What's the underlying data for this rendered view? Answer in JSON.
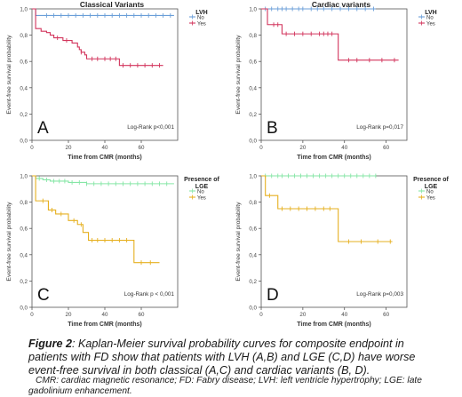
{
  "figure_caption": {
    "label": "Figure 2",
    "text": ": Kaplan-Meier survival probability curves for composite endpoint in patients with FD show that patients with LVH (A,B) and LGE (C,D) have worse event-free survival in both classical (A,C) and cardiac variants (B, D).",
    "abbreviations": "CMR: cardiac magnetic resonance; FD: Fabry disease; LVH: left ventricle hypertrophy; LGE: late gadolinium enhancement."
  },
  "colors": {
    "no": "#6b9fd8",
    "yes": "#d2345c",
    "no_lge": "#86e6a6",
    "yes_lge": "#e6b020",
    "axis": "#555555"
  },
  "chart_data": [
    {
      "panel_letter": "A",
      "type": "line",
      "title": "Classical Variants",
      "xlabel": "Time from CMR (months)",
      "ylabel": "Event-free survival probability",
      "xlim": [
        0,
        80
      ],
      "ylim": [
        0,
        1
      ],
      "xticks": [
        0,
        20,
        40,
        60
      ],
      "xtick_labels": [
        "0",
        "20",
        "40",
        "60"
      ],
      "yticks": [
        0,
        0.2,
        0.4,
        0.6,
        0.8,
        1.0
      ],
      "ytick_labels": [
        "0,0",
        "0,2",
        "0,4",
        "0,6",
        "0,8",
        "1,0"
      ],
      "legend_title": "LVH",
      "legend_position": "top-right",
      "stat_text": "Log-Rank p<0,001",
      "series": [
        {
          "name": "No",
          "color": "#6b9fd8",
          "steps": [
            [
              0,
              1.0
            ],
            [
              2,
              0.95
            ],
            [
              78,
              0.95
            ]
          ],
          "censored": [
            8,
            12,
            16,
            20,
            24,
            28,
            32,
            36,
            40,
            44,
            48,
            52,
            56,
            60,
            64,
            68,
            72,
            76
          ]
        },
        {
          "name": "Yes",
          "color": "#d2345c",
          "steps": [
            [
              0,
              1.0
            ],
            [
              2,
              0.85
            ],
            [
              5,
              0.83
            ],
            [
              8,
              0.82
            ],
            [
              10,
              0.8
            ],
            [
              12,
              0.78
            ],
            [
              17,
              0.76
            ],
            [
              22,
              0.74
            ],
            [
              25,
              0.71
            ],
            [
              26,
              0.69
            ],
            [
              27,
              0.67
            ],
            [
              29,
              0.65
            ],
            [
              30,
              0.62
            ],
            [
              48,
              0.57
            ],
            [
              72,
              0.57
            ]
          ],
          "censored": [
            14,
            19,
            27,
            33,
            36,
            40,
            43,
            46,
            50,
            54,
            58,
            62,
            66,
            70
          ]
        }
      ]
    },
    {
      "panel_letter": "B",
      "type": "line",
      "title": "Cardiac variants",
      "xlabel": "Time from CMR (months)",
      "ylabel": "Event-free survival probability",
      "xlim": [
        0,
        70
      ],
      "ylim": [
        0,
        1
      ],
      "xticks": [
        0,
        20,
        40,
        60
      ],
      "xtick_labels": [
        "0",
        "20",
        "40",
        "60"
      ],
      "yticks": [
        0,
        0.2,
        0.4,
        0.6,
        0.8,
        1.0
      ],
      "ytick_labels": [
        "0,0",
        "0,2",
        "0,4",
        "0,6",
        "0,8",
        "1,0"
      ],
      "legend_title": "LVH",
      "legend_position": "top-right",
      "stat_text": "Log-Rank p=0,017",
      "series": [
        {
          "name": "No",
          "color": "#6b9fd8",
          "steps": [
            [
              0,
              1.0
            ],
            [
              55,
              1.0
            ]
          ],
          "censored": [
            2,
            5,
            8,
            10,
            12,
            15,
            18,
            20,
            24,
            27,
            30,
            34,
            38,
            42,
            46,
            50,
            54
          ]
        },
        {
          "name": "Yes",
          "color": "#d2345c",
          "steps": [
            [
              0,
              1.0
            ],
            [
              3,
              0.88
            ],
            [
              10,
              0.81
            ],
            [
              37,
              0.61
            ],
            [
              66,
              0.61
            ]
          ],
          "censored": [
            6,
            8,
            12,
            16,
            20,
            24,
            28,
            30,
            32,
            34,
            42,
            46,
            52,
            58,
            64
          ]
        }
      ]
    },
    {
      "panel_letter": "C",
      "type": "line",
      "title": "",
      "xlabel": "Time from CMR (months)",
      "ylabel": "Event-free survival probability",
      "xlim": [
        0,
        80
      ],
      "ylim": [
        0,
        1
      ],
      "xticks": [
        0,
        20,
        40,
        60
      ],
      "xtick_labels": [
        "0",
        "20",
        "40",
        "60"
      ],
      "yticks": [
        0,
        0.2,
        0.4,
        0.6,
        0.8,
        1.0
      ],
      "ytick_labels": [
        "0,0",
        "0,2",
        "0,4",
        "0,6",
        "0,8",
        "1,0"
      ],
      "legend_title": "Presence of LGE",
      "legend_position": "top-right",
      "stat_text": "Log-Rank p < 0,001",
      "series": [
        {
          "name": "No",
          "color": "#86e6a6",
          "steps": [
            [
              0,
              1.0
            ],
            [
              2,
              0.98
            ],
            [
              6,
              0.97
            ],
            [
              10,
              0.96
            ],
            [
              20,
              0.95
            ],
            [
              30,
              0.94
            ],
            [
              78,
              0.94
            ]
          ],
          "censored": [
            4,
            8,
            12,
            15,
            18,
            22,
            26,
            30,
            34,
            38,
            42,
            46,
            50,
            54,
            58,
            62,
            66,
            70,
            74
          ]
        },
        {
          "name": "Yes",
          "color": "#e6b020",
          "steps": [
            [
              0,
              1.0
            ],
            [
              2,
              0.81
            ],
            [
              9,
              0.74
            ],
            [
              13,
              0.71
            ],
            [
              20,
              0.66
            ],
            [
              25,
              0.63
            ],
            [
              28,
              0.57
            ],
            [
              31,
              0.51
            ],
            [
              56,
              0.34
            ],
            [
              70,
              0.34
            ]
          ],
          "censored": [
            6,
            11,
            16,
            23,
            27,
            33,
            36,
            40,
            44,
            48,
            52,
            60,
            65
          ]
        }
      ]
    },
    {
      "panel_letter": "D",
      "type": "line",
      "title": "",
      "xlabel": "Time from CMR (months)",
      "ylabel": "Event-free survival probability",
      "xlim": [
        0,
        70
      ],
      "ylim": [
        0,
        1
      ],
      "xticks": [
        0,
        20,
        40,
        60
      ],
      "xtick_labels": [
        "0",
        "20",
        "40",
        "60"
      ],
      "yticks": [
        0,
        0.2,
        0.4,
        0.6,
        0.8,
        1.0
      ],
      "ytick_labels": [
        "0,0",
        "0,2",
        "0,4",
        "0,6",
        "0,8",
        "1,0"
      ],
      "legend_title": "Presence of LGE",
      "legend_position": "top-right",
      "stat_text": "Log-Rank p=0,003",
      "series": [
        {
          "name": "No",
          "color": "#86e6a6",
          "steps": [
            [
              0,
              1.0
            ],
            [
              55,
              1.0
            ]
          ],
          "censored": [
            2,
            5,
            8,
            10,
            13,
            16,
            19,
            22,
            25,
            28,
            31,
            34,
            37,
            40,
            43,
            46,
            49,
            52,
            55
          ]
        },
        {
          "name": "Yes",
          "color": "#e6b020",
          "steps": [
            [
              0,
              1.0
            ],
            [
              2,
              0.85
            ],
            [
              8,
              0.75
            ],
            [
              37,
              0.5
            ],
            [
              63,
              0.5
            ]
          ],
          "censored": [
            4,
            10,
            14,
            18,
            22,
            26,
            30,
            33,
            42,
            48,
            56,
            62
          ]
        }
      ]
    }
  ]
}
